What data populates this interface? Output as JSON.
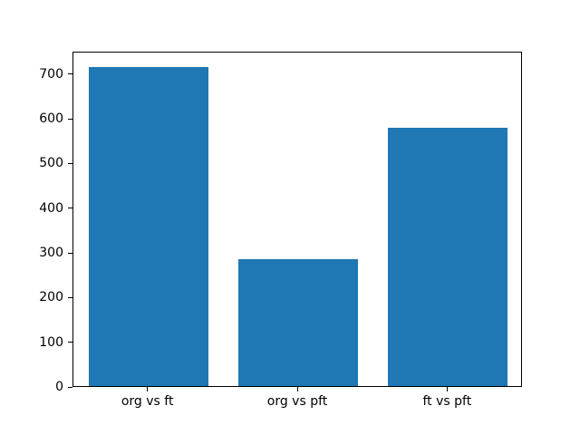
{
  "chart_data": {
    "type": "bar",
    "categories": [
      "org vs ft",
      "org vs pft",
      "ft vs pft"
    ],
    "values": [
      713,
      283,
      577
    ],
    "title": "",
    "xlabel": "",
    "ylabel": "",
    "ylim": [
      0,
      750
    ],
    "yticks": [
      0,
      100,
      200,
      300,
      400,
      500,
      600,
      700
    ],
    "bar_color": "#1f77b4",
    "axes_background": "#ffffff",
    "figure_background": "#ffffff",
    "spine_color": "#000000",
    "tick_label_color": "#000000",
    "grid": false,
    "legend": null,
    "bar_width_fraction": 0.8
  }
}
